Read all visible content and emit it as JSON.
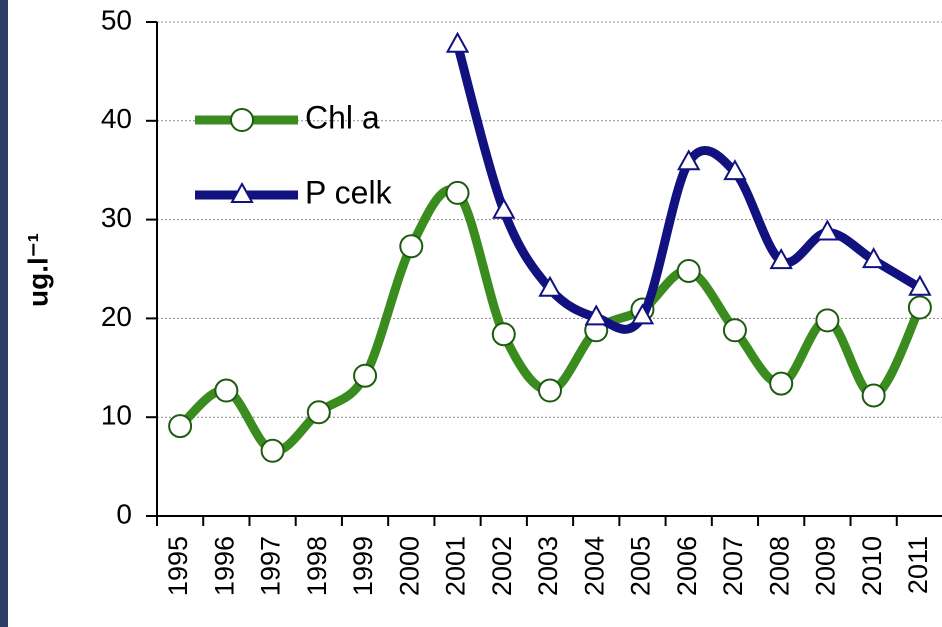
{
  "chart_data": {
    "type": "line",
    "ylabel": "ug.l⁻¹",
    "categories": [
      "1995",
      "1996",
      "1997",
      "1998",
      "1999",
      "2000",
      "2001",
      "2002",
      "2003",
      "2004",
      "2005",
      "2006",
      "2007",
      "2008",
      "2009",
      "2010",
      "2011"
    ],
    "series": [
      {
        "name": "Chl a",
        "color": "#3a8c1f",
        "marker": "circle",
        "values": [
          9.1,
          12.7,
          6.6,
          10.5,
          14.2,
          27.3,
          32.7,
          18.4,
          12.7,
          18.8,
          20.9,
          24.8,
          18.8,
          13.4,
          19.8,
          12.2,
          21.1
        ]
      },
      {
        "name": "P celk",
        "color": "#111180",
        "marker": "triangle",
        "values": [
          null,
          null,
          null,
          null,
          null,
          null,
          47.7,
          30.9,
          23.0,
          20.1,
          20.2,
          35.8,
          34.8,
          25.8,
          28.7,
          25.9,
          23.1
        ]
      }
    ],
    "ylim": [
      0,
      50
    ],
    "yticks": [
      0,
      10,
      20,
      30,
      40,
      50
    ],
    "grid": true,
    "legend": "upper-left"
  }
}
